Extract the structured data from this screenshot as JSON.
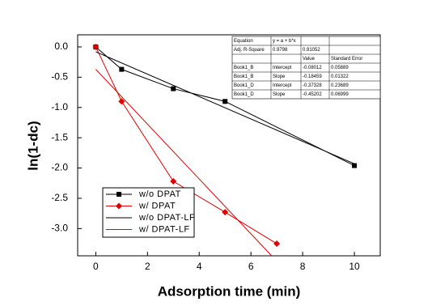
{
  "chart_data": {
    "type": "line",
    "x_label": "Adsorption time (min)",
    "y_label": "ln(1-dc)",
    "xlim": [
      -0.7,
      11
    ],
    "ylim": [
      -3.45,
      0.2
    ],
    "xticks": [
      0,
      2,
      4,
      6,
      8,
      10
    ],
    "yticks": [
      {
        "value": 0,
        "label": "0.0"
      },
      -0.5,
      {
        "value": -1,
        "label": "-1.0"
      },
      -1.5,
      {
        "value": -2,
        "label": "-2.0"
      },
      -2.5,
      {
        "value": -3,
        "label": "-3.0"
      }
    ],
    "legend": "bottom-left",
    "series": [
      {
        "name": "w/o DPAT",
        "color": "#000000",
        "marker": "square",
        "x": [
          0,
          1,
          3,
          5,
          10
        ],
        "values": [
          0,
          -0.37,
          -0.69,
          -0.9,
          -1.96
        ]
      },
      {
        "name": "w/ DPAT",
        "color": "#e00000",
        "marker": "diamond",
        "x": [
          0,
          1,
          3,
          5,
          7
        ],
        "values": [
          0,
          -0.9,
          -2.22,
          -2.73,
          -3.25
        ]
      },
      {
        "name": "w/o DPAT-LF",
        "color": "#000000",
        "x": [
          0,
          10
        ],
        "values": [
          -0.08,
          -1.93
        ]
      },
      {
        "name": "w/ DPAT-LF",
        "color": "#e00000",
        "x": [
          0,
          6.8
        ],
        "values": [
          -0.37,
          -3.45
        ]
      }
    ],
    "annotation_table": {
      "rows": [
        [
          "Equation",
          "y = a + b*x",
          null,
          null
        ],
        [
          "Adj. R-Square",
          "0.9798",
          "0.91052",
          null
        ],
        [
          null,
          null,
          "Value",
          "Standard Error"
        ],
        [
          "Book1_B",
          "Intercept",
          "-0.08012",
          "0.05889"
        ],
        [
          "Book1_B",
          "Slope",
          "-0.18459",
          "0.01322"
        ],
        [
          "Book1_D",
          "Intercept",
          "-0.37328",
          "0.23689"
        ],
        [
          "Book1_D",
          "Slope",
          "-0.45202",
          "0.06999"
        ]
      ]
    }
  }
}
